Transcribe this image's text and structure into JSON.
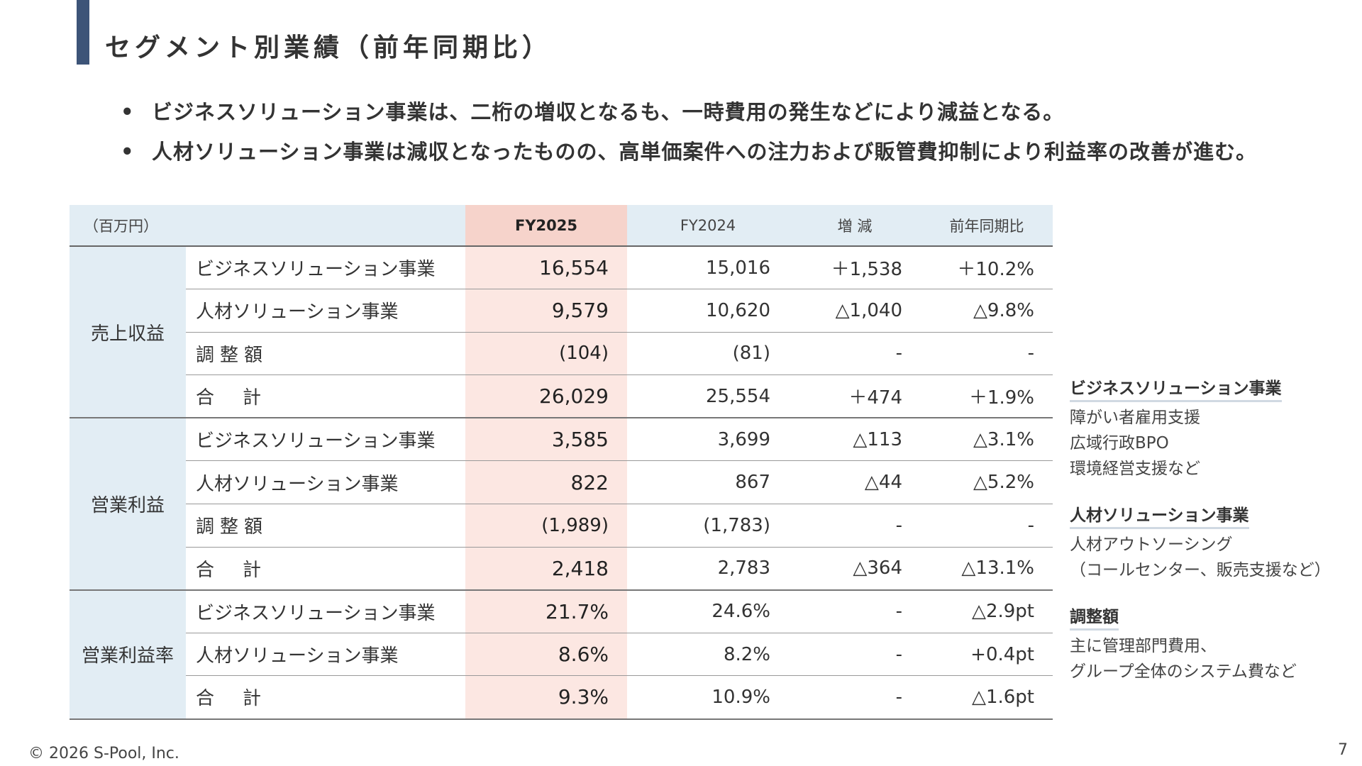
{
  "title": "セグメント別業績（前年同期比）",
  "bullets": [
    "ビジネスソリューション事業は、二桁の増収となるも、一時費用の発生などにより減益となる。",
    "人材ソリューション事業は減収となったものの、高単価案件への注力および販管費抑制により利益率の改善が進む。"
  ],
  "bullet_marker": "•",
  "table": {
    "unit": "（百万円）",
    "headers": {
      "fy2025": "FY2025",
      "fy2024": "FY2024",
      "change": "増 減",
      "yoy": "前年同期比"
    },
    "groups": [
      {
        "name": "売上収益",
        "rows": [
          {
            "label": "ビジネスソリューション事業",
            "fy2025": "16,554",
            "fy2024": "15,016",
            "change": "＋1,538",
            "yoy": "＋10.2%"
          },
          {
            "label": "人材ソリューション事業",
            "fy2025": "9,579",
            "fy2024": "10,620",
            "change": "△1,040",
            "yoy": "△9.8%"
          },
          {
            "label": "調整額",
            "fy2025": "(104)",
            "fy2024": "(81)",
            "change": "-",
            "yoy": "-"
          },
          {
            "label": "合計",
            "fy2025": "26,029",
            "fy2024": "25,554",
            "change": "＋474",
            "yoy": "＋1.9%"
          }
        ]
      },
      {
        "name": "営業利益",
        "rows": [
          {
            "label": "ビジネスソリューション事業",
            "fy2025": "3,585",
            "fy2024": "3,699",
            "change": "△113",
            "yoy": "△3.1%"
          },
          {
            "label": "人材ソリューション事業",
            "fy2025": "822",
            "fy2024": "867",
            "change": "△44",
            "yoy": "△5.2%"
          },
          {
            "label": "調整額",
            "fy2025": "(1,989)",
            "fy2024": "(1,783)",
            "change": "-",
            "yoy": "-"
          },
          {
            "label": "合計",
            "fy2025": "2,418",
            "fy2024": "2,783",
            "change": "△364",
            "yoy": "△13.1%"
          }
        ]
      },
      {
        "name": "営業利益率",
        "rows": [
          {
            "label": "ビジネスソリューション事業",
            "fy2025": "21.7%",
            "fy2024": "24.6%",
            "change": "-",
            "yoy": "△2.9pt"
          },
          {
            "label": "人材ソリューション事業",
            "fy2025": "8.6%",
            "fy2024": "8.2%",
            "change": "-",
            "yoy": "+0.4pt"
          },
          {
            "label": "合計",
            "fy2025": "9.3%",
            "fy2024": "10.9%",
            "change": "-",
            "yoy": "△1.6pt"
          }
        ]
      }
    ]
  },
  "side_notes": [
    {
      "heading": "ビジネスソリューション事業",
      "lines": [
        "障がい者雇用支援",
        "広域行政BPO",
        "環境経営支援など"
      ]
    },
    {
      "heading": "人材ソリューション事業",
      "lines": [
        "人材アウトソーシング",
        "（コールセンター、販売支援など）"
      ]
    },
    {
      "heading": "調整額",
      "lines": [
        "主に管理部門費用、",
        "グループ全体のシステム費など"
      ]
    }
  ],
  "footer": "© 2026 S-Pool, Inc.",
  "page_number": "7",
  "colors": {
    "accent_bar": "#3d5478",
    "header_bg": "#e2edf4",
    "fy2025_header_bg": "#f6d3cb",
    "fy2025_cell_bg": "#fce7e2",
    "negative_text": "#e0201e"
  }
}
